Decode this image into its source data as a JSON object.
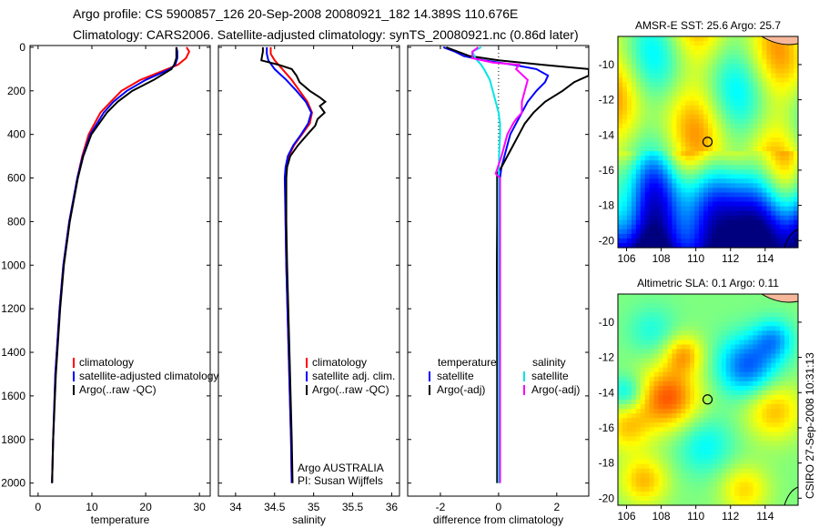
{
  "title": {
    "line1": "Argo profile: CS 5900857_126 20-Sep-2008 20080921_182 14.389S 110.676E",
    "line2": "Climatology: CARS2006. Satellite-adjusted climatology: synTS_20080921.nc (0.86d later)"
  },
  "footer_stamp": "CSIRO 27-Sep-2008 10:31:13",
  "chart_data": [
    {
      "type": "line",
      "id": "temperature",
      "xlabel": "temperature",
      "ylabel": "",
      "xlim": [
        -1.5,
        32
      ],
      "ylim": [
        2060,
        -8
      ],
      "xticks": [
        0,
        10,
        20,
        30
      ],
      "yticks": [
        0,
        200,
        400,
        600,
        800,
        1000,
        1200,
        1400,
        1600,
        1800,
        2000
      ],
      "legend": [
        "climatology",
        "satellite-adjusted climatology",
        "Argo(..raw -QC)"
      ],
      "series": [
        {
          "name": "climatology",
          "color": "#ff0000",
          "depth": [
            0,
            20,
            50,
            80,
            100,
            150,
            200,
            250,
            300,
            400,
            500,
            600,
            800,
            1000,
            1200,
            1500,
            1800,
            2000
          ],
          "values": [
            27.6,
            28.1,
            27.5,
            26,
            24,
            19,
            15.5,
            13.5,
            11.6,
            9.4,
            8.2,
            7.3,
            5.8,
            4.7,
            4.0,
            3.2,
            2.8,
            2.6
          ]
        },
        {
          "name": "satellite-adjusted climatology",
          "color": "#0000ff",
          "depth": [
            0,
            20,
            50,
            80,
            100,
            150,
            200,
            250,
            300,
            400,
            500,
            600,
            800,
            1000,
            1200,
            1500,
            1800,
            2000
          ],
          "values": [
            25.7,
            25.9,
            25.9,
            25.5,
            24.5,
            20,
            16.5,
            14,
            12.2,
            9.7,
            8.3,
            7.3,
            5.8,
            4.7,
            4.0,
            3.2,
            2.8,
            2.6
          ]
        },
        {
          "name": "Argo(..raw -QC)",
          "color": "#000000",
          "depth": [
            0,
            20,
            50,
            80,
            100,
            150,
            200,
            250,
            300,
            400,
            500,
            600,
            800,
            1000,
            1200,
            1500,
            1800,
            2000
          ],
          "values": [
            25.7,
            25.7,
            25.7,
            25.3,
            24.8,
            21.5,
            17.5,
            14.8,
            12.8,
            9.9,
            8.4,
            7.4,
            5.9,
            4.8,
            4.1,
            3.3,
            2.8,
            2.6
          ]
        }
      ]
    },
    {
      "type": "line",
      "id": "salinity",
      "xlabel": "salinity",
      "xlim": [
        33.78,
        36.1
      ],
      "ylim": [
        2060,
        -8
      ],
      "xticks": [
        34,
        34.5,
        35,
        35.5,
        36
      ],
      "legend": [
        "climatology",
        "satellite adj. clim.",
        "Argo(..raw -QC)"
      ],
      "annotation": [
        "Argo AUSTRALIA",
        "PI: Susan Wijffels"
      ],
      "series": [
        {
          "name": "climatology",
          "color": "#ff0000",
          "depth": [
            0,
            30,
            60,
            100,
            150,
            200,
            250,
            300,
            350,
            400,
            450,
            500,
            550,
            600,
            800,
            1000,
            1400,
            1800,
            2000
          ],
          "values": [
            34.45,
            34.45,
            34.5,
            34.6,
            34.72,
            34.82,
            34.92,
            34.98,
            34.95,
            34.85,
            34.75,
            34.68,
            34.65,
            34.64,
            34.64,
            34.65,
            34.68,
            34.71,
            34.72
          ]
        },
        {
          "name": "satellite adj. clim.",
          "color": "#0000ff",
          "depth": [
            0,
            30,
            60,
            100,
            150,
            200,
            250,
            300,
            350,
            400,
            450,
            500,
            550,
            600,
            800,
            1000,
            1400,
            1800,
            2000
          ],
          "values": [
            34.4,
            34.4,
            34.42,
            34.5,
            34.65,
            34.78,
            34.9,
            34.97,
            34.93,
            34.84,
            34.74,
            34.67,
            34.64,
            34.63,
            34.64,
            34.65,
            34.68,
            34.71,
            34.72
          ]
        },
        {
          "name": "Argo(..raw -QC)",
          "color": "#000000",
          "depth": [
            0,
            20,
            40,
            60,
            80,
            100,
            130,
            160,
            200,
            230,
            250,
            270,
            300,
            330,
            360,
            400,
            450,
            500,
            550,
            600,
            800,
            1000,
            1400,
            1800,
            2000
          ],
          "values": [
            34.35,
            34.35,
            34.34,
            34.33,
            34.55,
            34.72,
            34.78,
            34.82,
            34.95,
            35.08,
            35.15,
            35.08,
            35.14,
            35.05,
            35.02,
            34.92,
            34.8,
            34.7,
            34.66,
            34.65,
            34.65,
            34.66,
            34.69,
            34.72,
            34.73
          ]
        }
      ]
    },
    {
      "type": "line",
      "id": "difference",
      "xlabel": "difference from climatology",
      "xlim": [
        -3.125,
        3.1
      ],
      "ylim": [
        2060,
        -8
      ],
      "xticks": [
        -2,
        0,
        2
      ],
      "legend_headers": [
        "temperature",
        "salinity"
      ],
      "legend": [
        "satellite",
        "Argo(-adj)",
        "satellite",
        "Argo(-adj)"
      ],
      "series": [
        {
          "name": "temperature satellite",
          "color": "#0000ff",
          "depth": [
            0,
            20,
            40,
            60,
            80,
            100,
            130,
            160,
            200,
            250,
            300,
            350,
            400,
            450,
            500,
            550,
            600,
            800,
            1000,
            1500,
            2000
          ],
          "values": [
            -1.9,
            -1.5,
            -1.2,
            -0.5,
            0.5,
            1.3,
            1.7,
            1.6,
            1.3,
            1.0,
            0.8,
            0.6,
            0.4,
            0.3,
            0.2,
            0.1,
            0.05,
            0.02,
            0.02,
            0.01,
            0.01
          ]
        },
        {
          "name": "temperature Argo(-adj)",
          "color": "#000000",
          "depth": [
            0,
            15,
            40,
            60,
            80,
            100,
            130,
            160,
            200,
            250,
            300,
            350,
            400,
            450,
            500,
            550,
            580,
            600,
            800,
            1000,
            1500,
            2000
          ],
          "values": [
            -1.8,
            -1.5,
            -1.0,
            0,
            1.5,
            3.1,
            3.1,
            2.6,
            2.2,
            1.6,
            1.2,
            0.9,
            0.7,
            0.5,
            0.3,
            0.1,
            -0.05,
            -0.05,
            -0.05,
            -0.06,
            -0.05,
            -0.05
          ]
        },
        {
          "name": "salinity satellite",
          "color": "#00e5e5",
          "depth": [
            0,
            20,
            50,
            80,
            100,
            150,
            200,
            250,
            300,
            350,
            400,
            450,
            500,
            600,
            800,
            1000,
            1500,
            2000
          ],
          "values": [
            -0.6,
            -0.9,
            -0.8,
            -0.6,
            -0.5,
            -0.3,
            -0.2,
            -0.1,
            0,
            0.05,
            0.05,
            0.03,
            0.02,
            0,
            0,
            0,
            0,
            0
          ]
        },
        {
          "name": "salinity Argo(-adj)",
          "color": "#ff00ff",
          "depth": [
            0,
            20,
            50,
            70,
            80,
            100,
            150,
            200,
            250,
            300,
            330,
            350,
            400,
            450,
            500,
            580,
            600,
            800,
            1000,
            1500,
            2000
          ],
          "values": [
            -0.7,
            -0.9,
            -0.9,
            -0.2,
            0.7,
            0.6,
            1.0,
            0.9,
            0.8,
            0.8,
            0.6,
            0.5,
            0.3,
            0.2,
            0.1,
            -0.1,
            0.05,
            0.05,
            0.05,
            0.05,
            0.05
          ]
        }
      ]
    },
    {
      "type": "heatmap",
      "id": "sst-map",
      "title": "AMSR-E SST: 25.6 Argo: 25.7",
      "xlim": [
        105.5,
        115.9
      ],
      "ylim": [
        -20.4,
        -8.4
      ],
      "xticks": [
        106,
        108,
        110,
        112,
        114
      ],
      "yticks": [
        -10,
        -12,
        -14,
        -16,
        -18,
        -20
      ],
      "marker": {
        "lon": 110.676,
        "lat": -14.389
      }
    },
    {
      "type": "heatmap",
      "id": "sla-map",
      "title": "Altimetric SLA: 0.1 Argo: 0.11",
      "xlim": [
        105.5,
        115.9
      ],
      "ylim": [
        -20.4,
        -8.4
      ],
      "xticks": [
        106,
        108,
        110,
        112,
        114
      ],
      "yticks": [
        -10,
        -12,
        -14,
        -16,
        -18,
        -20
      ],
      "marker": {
        "lon": 110.676,
        "lat": -14.389
      }
    }
  ]
}
